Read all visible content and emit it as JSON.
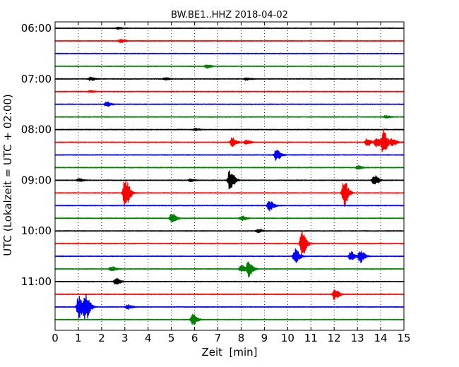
{
  "chart_data": {
    "type": "line",
    "title": "BW.BE1..HHZ 2018-04-02",
    "xlabel": "Zeit  [min]",
    "ylabel": "UTC (Lokalzeit = UTC + 02:00)",
    "xlim": [
      0,
      15
    ],
    "x_ticks": [
      "0",
      "1",
      "2",
      "3",
      "4",
      "5",
      "6",
      "7",
      "8",
      "9",
      "10",
      "11",
      "12",
      "13",
      "14",
      "15"
    ],
    "y_ticks": [
      "06:00",
      "07:00",
      "08:00",
      "09:00",
      "10:00",
      "11:00"
    ],
    "grid": "vertical dotted",
    "trace_interval_min": 15,
    "colors": [
      "#000000",
      "#ff0000",
      "#0000ff",
      "#008000"
    ],
    "traces": [
      {
        "start": "06:00",
        "events": [
          {
            "x": 2.7,
            "amp": 0.08
          }
        ]
      },
      {
        "start": "06:15",
        "events": [
          {
            "x": 2.8,
            "amp": 0.15
          }
        ]
      },
      {
        "start": "06:30",
        "events": []
      },
      {
        "start": "06:45",
        "events": [
          {
            "x": 6.5,
            "amp": 0.15
          }
        ]
      },
      {
        "start": "07:00",
        "events": [
          {
            "x": 1.5,
            "amp": 0.15
          },
          {
            "x": 4.7,
            "amp": 0.1
          },
          {
            "x": 8.2,
            "amp": 0.1
          }
        ]
      },
      {
        "start": "07:15",
        "events": [
          {
            "x": 1.5,
            "amp": 0.08
          }
        ]
      },
      {
        "start": "07:30",
        "events": [
          {
            "x": 2.2,
            "amp": 0.2
          }
        ]
      },
      {
        "start": "07:45",
        "events": [
          {
            "x": 14.2,
            "amp": 0.1
          }
        ]
      },
      {
        "start": "08:00",
        "events": [
          {
            "x": 6.0,
            "amp": 0.1
          }
        ]
      },
      {
        "start": "08:15",
        "events": [
          {
            "x": 7.6,
            "amp": 0.4
          },
          {
            "x": 8.2,
            "amp": 0.2
          },
          {
            "x": 13.4,
            "amp": 0.35
          },
          {
            "x": 13.8,
            "amp": 0.4
          },
          {
            "x": 14.1,
            "amp": 1.1
          },
          {
            "x": 14.5,
            "amp": 0.3
          }
        ]
      },
      {
        "start": "08:30",
        "events": [
          {
            "x": 9.5,
            "amp": 0.5
          }
        ]
      },
      {
        "start": "08:45",
        "events": [
          {
            "x": 13.0,
            "amp": 0.15
          }
        ]
      },
      {
        "start": "09:00",
        "events": [
          {
            "x": 1.0,
            "amp": 0.15
          },
          {
            "x": 5.8,
            "amp": 0.1
          },
          {
            "x": 7.5,
            "amp": 1.0
          },
          {
            "x": 13.7,
            "amp": 0.45
          }
        ]
      },
      {
        "start": "09:15",
        "events": [
          {
            "x": 3.0,
            "amp": 1.4
          },
          {
            "x": 12.4,
            "amp": 1.2
          }
        ]
      },
      {
        "start": "09:30",
        "events": [
          {
            "x": 9.2,
            "amp": 0.45
          }
        ]
      },
      {
        "start": "09:45",
        "events": [
          {
            "x": 5.0,
            "amp": 0.45
          },
          {
            "x": 8.0,
            "amp": 0.2
          }
        ]
      },
      {
        "start": "10:00",
        "events": [
          {
            "x": 8.7,
            "amp": 0.15
          }
        ]
      },
      {
        "start": "10:15",
        "events": [
          {
            "x": 10.6,
            "amp": 1.1
          }
        ]
      },
      {
        "start": "10:30",
        "events": [
          {
            "x": 10.3,
            "amp": 0.65
          },
          {
            "x": 12.7,
            "amp": 0.4
          },
          {
            "x": 13.1,
            "amp": 0.55
          }
        ]
      },
      {
        "start": "10:45",
        "events": [
          {
            "x": 2.4,
            "amp": 0.2
          },
          {
            "x": 8.0,
            "amp": 0.3
          },
          {
            "x": 8.3,
            "amp": 0.7
          }
        ]
      },
      {
        "start": "11:00",
        "events": [
          {
            "x": 2.6,
            "amp": 0.3
          }
        ]
      },
      {
        "start": "11:15",
        "events": [
          {
            "x": 12.0,
            "amp": 0.45
          }
        ]
      },
      {
        "start": "11:30",
        "events": [
          {
            "x": 1.0,
            "amp": 1.0
          },
          {
            "x": 1.3,
            "amp": 1.1
          },
          {
            "x": 3.1,
            "amp": 0.2
          }
        ]
      },
      {
        "start": "11:45",
        "events": [
          {
            "x": 5.9,
            "amp": 0.5
          }
        ]
      }
    ]
  }
}
